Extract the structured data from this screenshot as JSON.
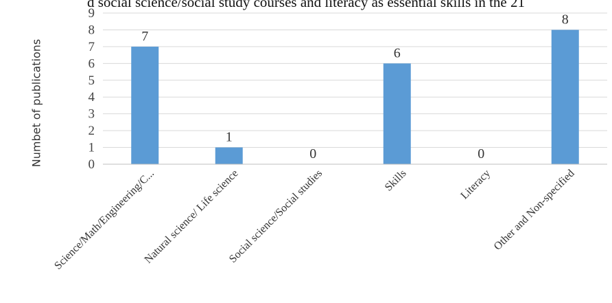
{
  "chart_data": {
    "type": "bar",
    "title": "d social science/social study courses and literacy as essential skills in the 21",
    "xlabel": "",
    "ylabel": "Numbet of publications",
    "ylim": [
      0,
      9
    ],
    "yticks": [
      "0",
      "1",
      "2",
      "3",
      "4",
      "5",
      "6",
      "7",
      "8",
      "9"
    ],
    "categories": [
      "Science/Math/Engineering/C...",
      "Natural science/ Life science",
      "Social science/Social studies",
      "Skills",
      "Literacy",
      "Other and Non-specified"
    ],
    "values": [
      7,
      1,
      0,
      6,
      0,
      8
    ],
    "data_labels": [
      "7",
      "1",
      "0",
      "6",
      "0",
      "8"
    ],
    "bar_color": "#5B9BD5",
    "grid": true,
    "legend": "none"
  }
}
